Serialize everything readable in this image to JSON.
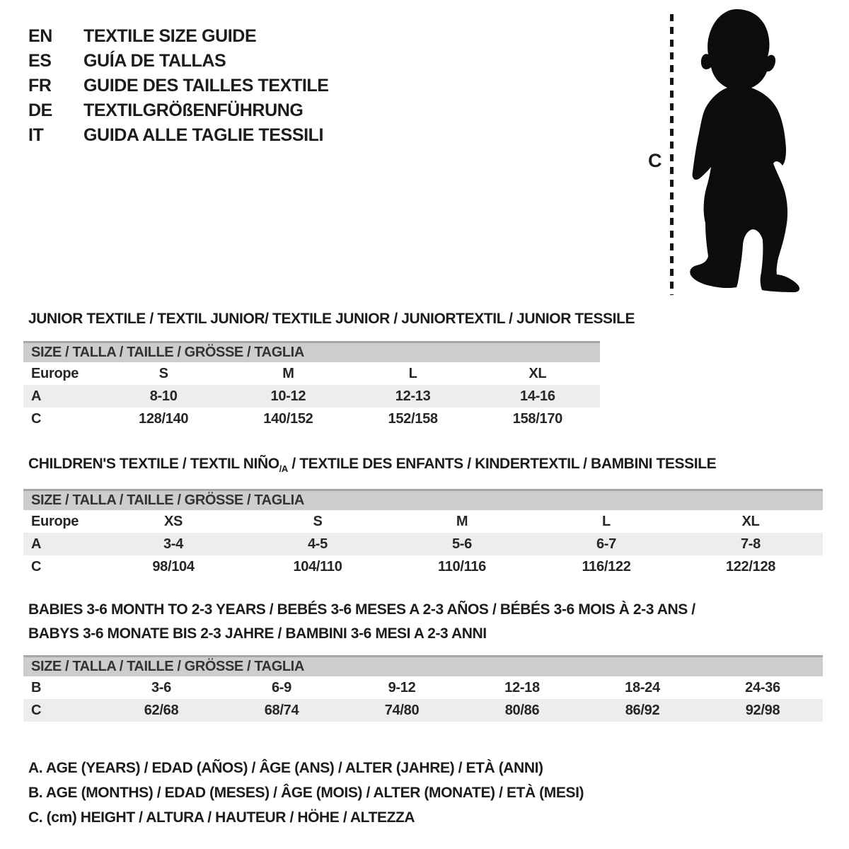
{
  "languages": [
    {
      "code": "EN",
      "label": "TEXTILE SIZE GUIDE"
    },
    {
      "code": "ES",
      "label": "GUÍA DE TALLAS"
    },
    {
      "code": "FR",
      "label": "GUIDE DES TAILLES TEXTILE"
    },
    {
      "code": "DE",
      "label": "TEXTILGRÖßENFÜHRUNG"
    },
    {
      "code": "IT",
      "label": "GUIDA ALLE TAGLIE TESSILI"
    }
  ],
  "figure": {
    "label": "C"
  },
  "sections": [
    {
      "id": "junior",
      "title_lines": [
        [
          {
            "t": "JUNIOR TEXTILE / TEXTIL JUNIOR/ TEXTILE JUNIOR / JUNIORTEXTIL / JUNIOR TESSILE"
          }
        ]
      ],
      "size_header": "SIZE / TALLA / TAILLE / GRÖSSE / TAGLIA",
      "rows": [
        {
          "label": "Europe",
          "values": [
            "S",
            "M",
            "L",
            "XL"
          ]
        },
        {
          "label": "A",
          "values": [
            "8-10",
            "10-12",
            "12-13",
            "14-16"
          ]
        },
        {
          "label": "C",
          "values": [
            "128/140",
            "140/152",
            "152/158",
            "158/170"
          ]
        }
      ]
    },
    {
      "id": "children",
      "title_lines": [
        [
          {
            "t": "CHILDREN'S TEXTILE / TEXTIL NIÑO"
          },
          {
            "t": "/A",
            "sub": true
          },
          {
            "t": " / TEXTILE DES ENFANTS / KINDERTEXTIL / BAMBINI TESSILE"
          }
        ]
      ],
      "size_header": "SIZE / TALLA / TAILLE / GRÖSSE / TAGLIA",
      "rows": [
        {
          "label": "Europe",
          "values": [
            "XS",
            "S",
            "M",
            "L",
            "XL"
          ]
        },
        {
          "label": "A",
          "values": [
            "3-4",
            "4-5",
            "5-6",
            "6-7",
            "7-8"
          ]
        },
        {
          "label": "C",
          "values": [
            "98/104",
            "104/110",
            "110/116",
            "116/122",
            "122/128"
          ]
        }
      ]
    },
    {
      "id": "babies",
      "title_lines": [
        [
          {
            "t": "BABIES 3-6 MONTH TO 2-3 YEARS / BEBÉS 3-6 MESES A 2-3 AÑOS / BÉBÉS 3-6 MOIS À 2-3 ANS /"
          }
        ],
        [
          {
            "t": "BABYS 3-6 MONATE BIS 2-3 JAHRE / BAMBINI 3-6 MESI A 2-3 ANNI"
          }
        ]
      ],
      "size_header": "SIZE / TALLA / TAILLE / GRÖSSE / TAGLIA",
      "rows": [
        {
          "label": "B",
          "values": [
            "3-6",
            "6-9",
            "9-12",
            "12-18",
            "18-24",
            "24-36"
          ]
        },
        {
          "label": "C",
          "values": [
            "62/68",
            "68/74",
            "74/80",
            "80/86",
            "86/92",
            "92/98"
          ]
        }
      ]
    }
  ],
  "legend": [
    "A. AGE (YEARS) / EDAD (AÑOS) / ÂGE (ANS) / ALTER (JAHRE) / ETÀ (ANNI)",
    "B. AGE (MONTHS) / EDAD (MESES) / ÂGE (MOIS) / ALTER (MONATE) / ETÀ (MESI)",
    "C. (cm) HEIGHT / ALTURA / HAUTEUR / HÖHE / ALTEZZA"
  ],
  "colors": {
    "header_bar_bg": "#cdcdcd",
    "header_bar_border": "#a6a6a6",
    "row_alt_bg": "#ededed",
    "text": "#1c1c1c",
    "silhouette": "#0c0c0c"
  }
}
